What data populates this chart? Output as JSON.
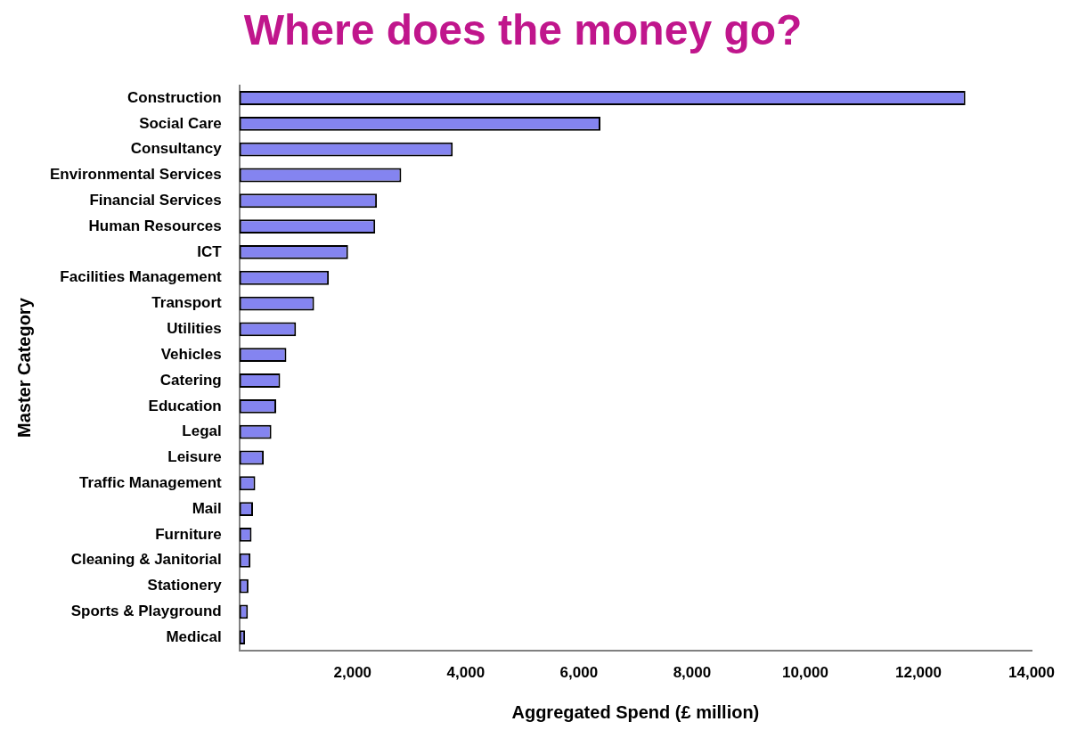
{
  "chart_data": {
    "type": "bar",
    "orientation": "horizontal",
    "title": "Where does the money go?",
    "xlabel": "Aggregated Spend (£ million)",
    "ylabel": "Master Category",
    "categories": [
      "Construction",
      "Social Care",
      "Consultancy",
      "Environmental Services",
      "Financial Services",
      "Human Resources",
      "ICT",
      "Facilities Management",
      "Transport",
      "Utilities",
      "Vehicles",
      "Catering",
      "Education",
      "Legal",
      "Leisure",
      "Traffic Management",
      "Mail",
      "Furniture",
      "Cleaning & Janitorial",
      "Stationery",
      "Sports & Playground",
      "Medical"
    ],
    "values": [
      12830,
      6380,
      3770,
      2860,
      2430,
      2400,
      1920,
      1580,
      1320,
      1000,
      830,
      720,
      650,
      565,
      430,
      280,
      240,
      215,
      195,
      160,
      150,
      100
    ],
    "color": "#8484f0",
    "xlim": [
      0,
      14000
    ],
    "xticks": [
      {
        "value": 0,
        "label": null
      },
      {
        "value": 2000,
        "label": "2,000"
      },
      {
        "value": 4000,
        "label": "4,000"
      },
      {
        "value": 6000,
        "label": "6,000"
      },
      {
        "value": 8000,
        "label": "8,000"
      },
      {
        "value": 10000,
        "label": "10,000"
      },
      {
        "value": 12000,
        "label": "12,000"
      },
      {
        "value": 14000,
        "label": "14,000"
      }
    ],
    "grid": false,
    "legend": false
  }
}
